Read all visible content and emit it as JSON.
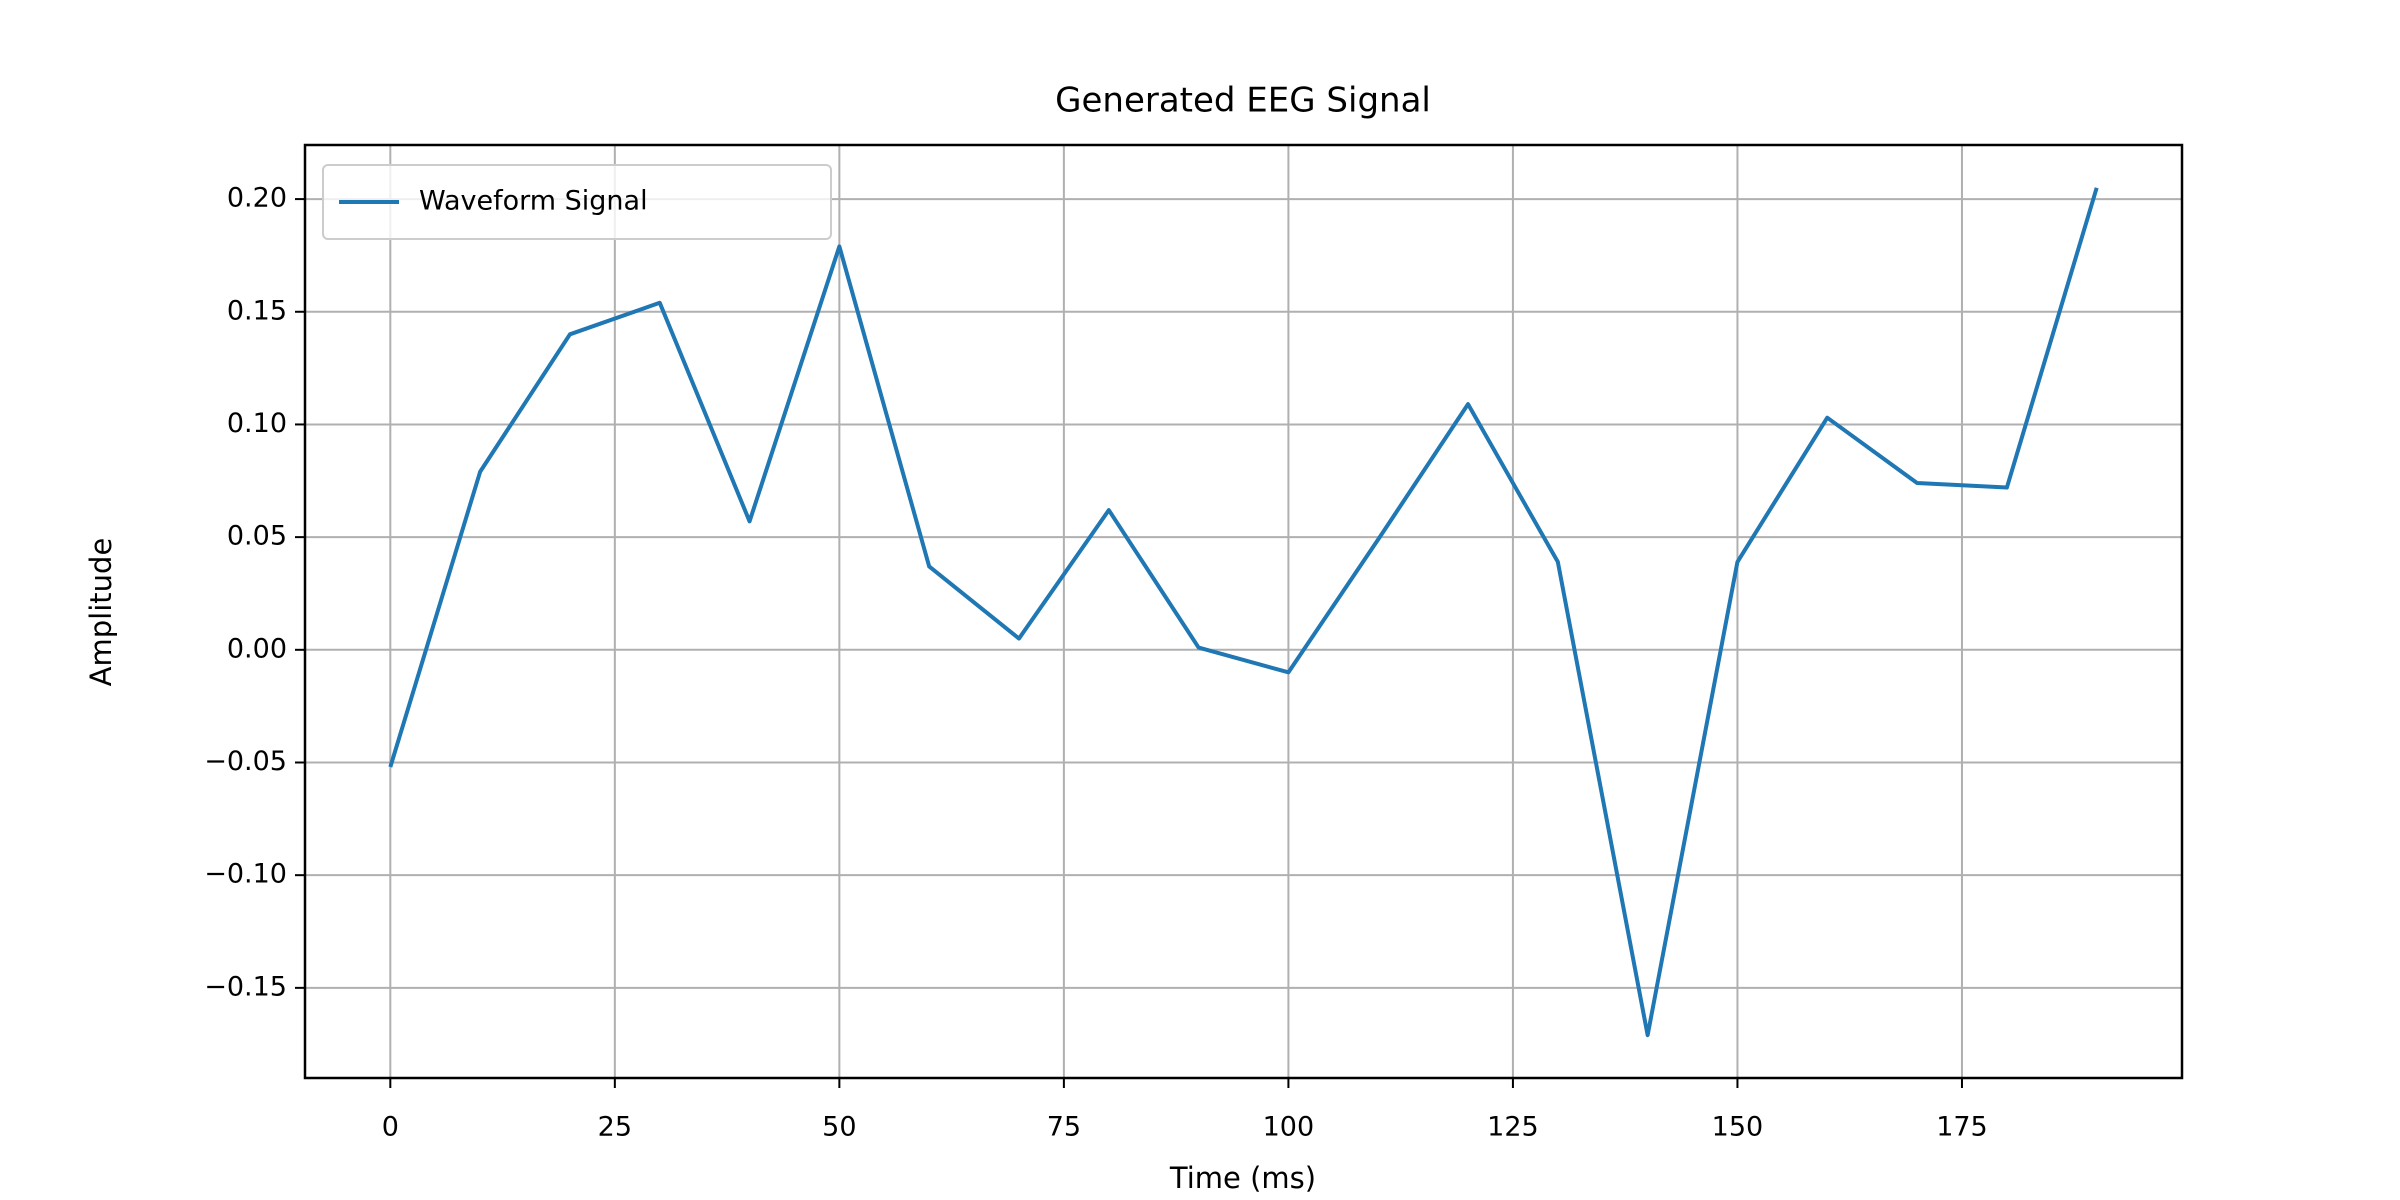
{
  "chart_data": {
    "type": "line",
    "title": "Generated EEG Signal",
    "x_label": "Time (ms)",
    "y_label": "Amplitude",
    "x": [
      0,
      10,
      20,
      30,
      40,
      50,
      60,
      70,
      80,
      90,
      100,
      110,
      120,
      130,
      140,
      150,
      160,
      170,
      180,
      190
    ],
    "series": [
      {
        "name": "Waveform Signal",
        "color": "#1f77b4",
        "values": [
          -0.052,
          0.079,
          0.14,
          0.154,
          0.057,
          0.179,
          0.037,
          0.005,
          0.062,
          0.001,
          -0.01,
          0.049,
          0.109,
          0.039,
          -0.171,
          0.039,
          0.103,
          0.074,
          0.072,
          0.205
        ]
      }
    ],
    "xlim": [
      -9.5,
      199.5
    ],
    "ylim": [
      -0.19,
      0.224
    ],
    "xticks": [
      0,
      25,
      50,
      75,
      100,
      125,
      150,
      175
    ],
    "yticks": [
      {
        "value": -0.15,
        "label": "−0.15"
      },
      {
        "value": -0.1,
        "label": "−0.10"
      },
      {
        "value": -0.05,
        "label": "−0.05"
      },
      {
        "value": 0,
        "label": "0.00"
      },
      {
        "value": 0.05,
        "label": "0.05"
      },
      {
        "value": 0.1,
        "label": "0.10"
      },
      {
        "value": 0.15,
        "label": "0.15"
      },
      {
        "value": 0.2,
        "label": "0.20"
      }
    ],
    "grid": true,
    "legend": "upper left"
  }
}
